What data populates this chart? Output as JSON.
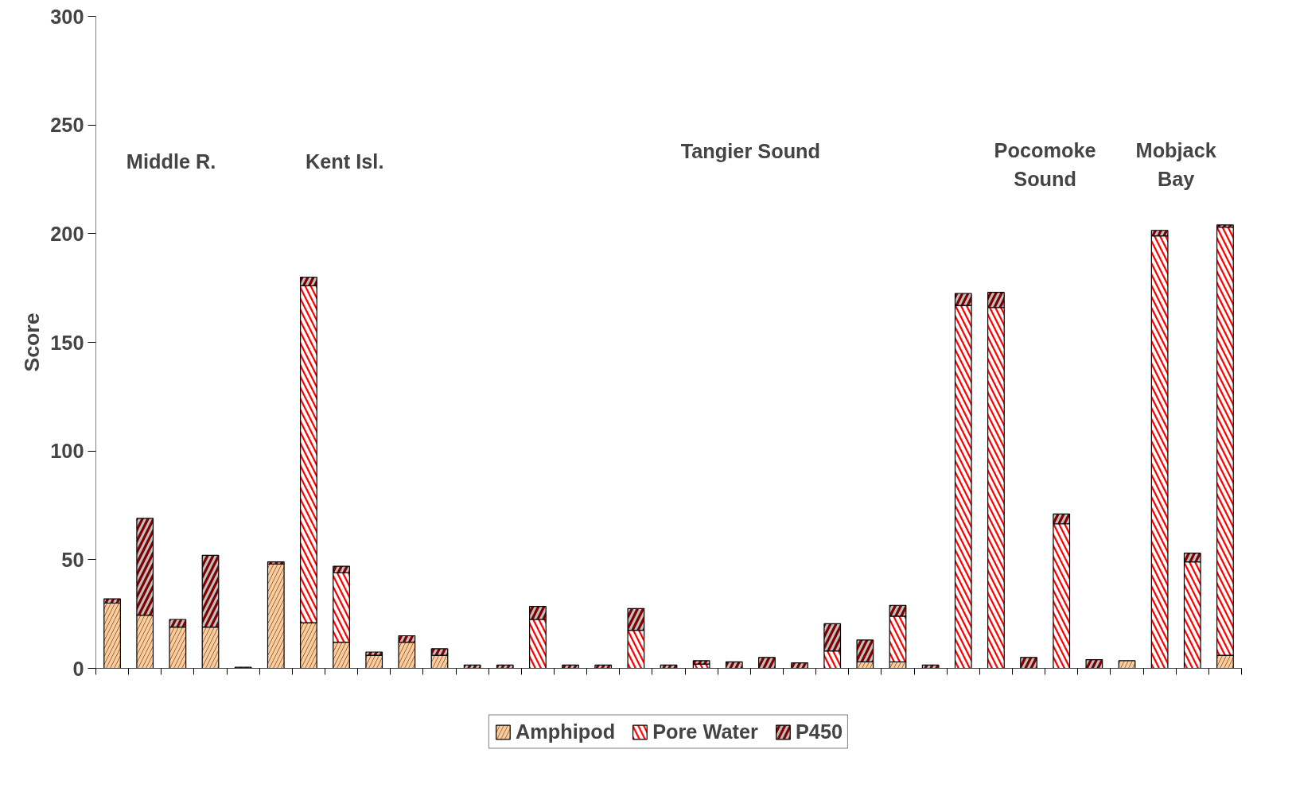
{
  "chart_data": {
    "type": "bar",
    "stacked": true,
    "ylabel": "Score",
    "categories": [
      null,
      null,
      null,
      null,
      null,
      null,
      null,
      null,
      null,
      null,
      null,
      null,
      null,
      null,
      null,
      null,
      null,
      null,
      null,
      null,
      null,
      null,
      null,
      null,
      null,
      null,
      null,
      null,
      null,
      null,
      null,
      null,
      null,
      null,
      null
    ],
    "series": [
      {
        "name": "Amphipod",
        "color": "#ffcc99",
        "values": [
          30,
          24.5,
          19,
          19,
          0,
          48,
          21,
          12,
          6,
          12,
          6,
          0,
          0,
          0,
          0,
          0,
          0,
          0,
          0,
          0,
          0,
          0,
          0,
          3,
          3,
          0,
          0,
          0,
          0,
          0,
          0,
          3.5,
          0,
          0,
          6
        ]
      },
      {
        "name": "Pore Water",
        "color": "#ff0000",
        "values": [
          0,
          0,
          0,
          0,
          0,
          0,
          155,
          32,
          0,
          0,
          0,
          0,
          0,
          22.5,
          0,
          0,
          17.5,
          0,
          2,
          0,
          0,
          0,
          8,
          0,
          21,
          0,
          167,
          166,
          0,
          66.5,
          0,
          0,
          199,
          49,
          197
        ]
      },
      {
        "name": "P450",
        "color": "#800000",
        "values": [
          2,
          44.5,
          3.5,
          33,
          0.5,
          1,
          4,
          3,
          1.5,
          3,
          3,
          1.5,
          1.5,
          6,
          1.5,
          1.5,
          10,
          1.5,
          1.5,
          3,
          5,
          2.5,
          12.5,
          10,
          5,
          1.5,
          5.5,
          7,
          5,
          4.5,
          4,
          0,
          2.5,
          4,
          1
        ]
      }
    ],
    "ylim": [
      0,
      300
    ],
    "yticks": [
      0,
      50,
      100,
      150,
      200,
      250,
      300
    ],
    "annotations": [
      "Middle R.",
      "Kent Isl.",
      "Tangier Sound",
      "Pocomoke\nSound",
      "Mobjack\nBay"
    ],
    "legend": "bottom",
    "grid": false
  }
}
